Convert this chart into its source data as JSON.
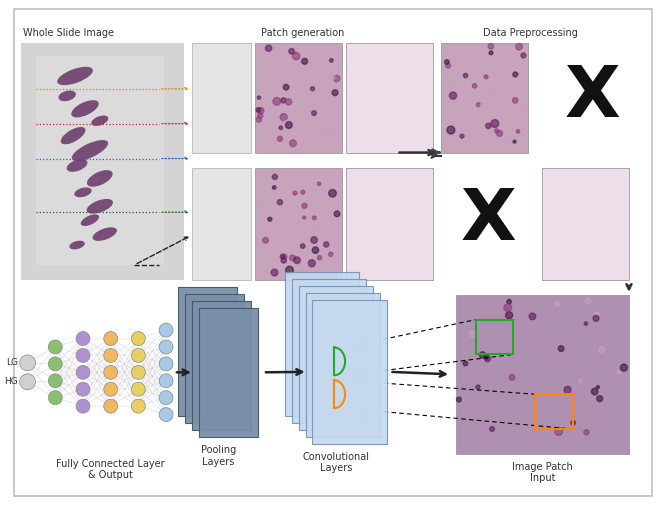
{
  "bg_color": "#ffffff",
  "border_color": "#c0c0c0",
  "labels": {
    "whole_slide": "Whole Slide Image",
    "patch_gen": "Patch generation",
    "data_prep": "Data Preprocessing",
    "fc_layer": "Fully Connected Layer\n& Output",
    "pooling": "Pooling\nLayers",
    "conv": "Convolutional\nLayers",
    "img_patch": "Image Patch\nInput",
    "lg": "LG",
    "hg": "HG"
  },
  "gray_bg": "#d4d4d4",
  "light_gray": "#e0e0e0",
  "conv_color": "#c5d8ee",
  "pool_color": "#7a8fa8",
  "tissue_color": "#6b3a6b",
  "histo_pink": "#c9a4be",
  "histo_light": "#eedde8"
}
